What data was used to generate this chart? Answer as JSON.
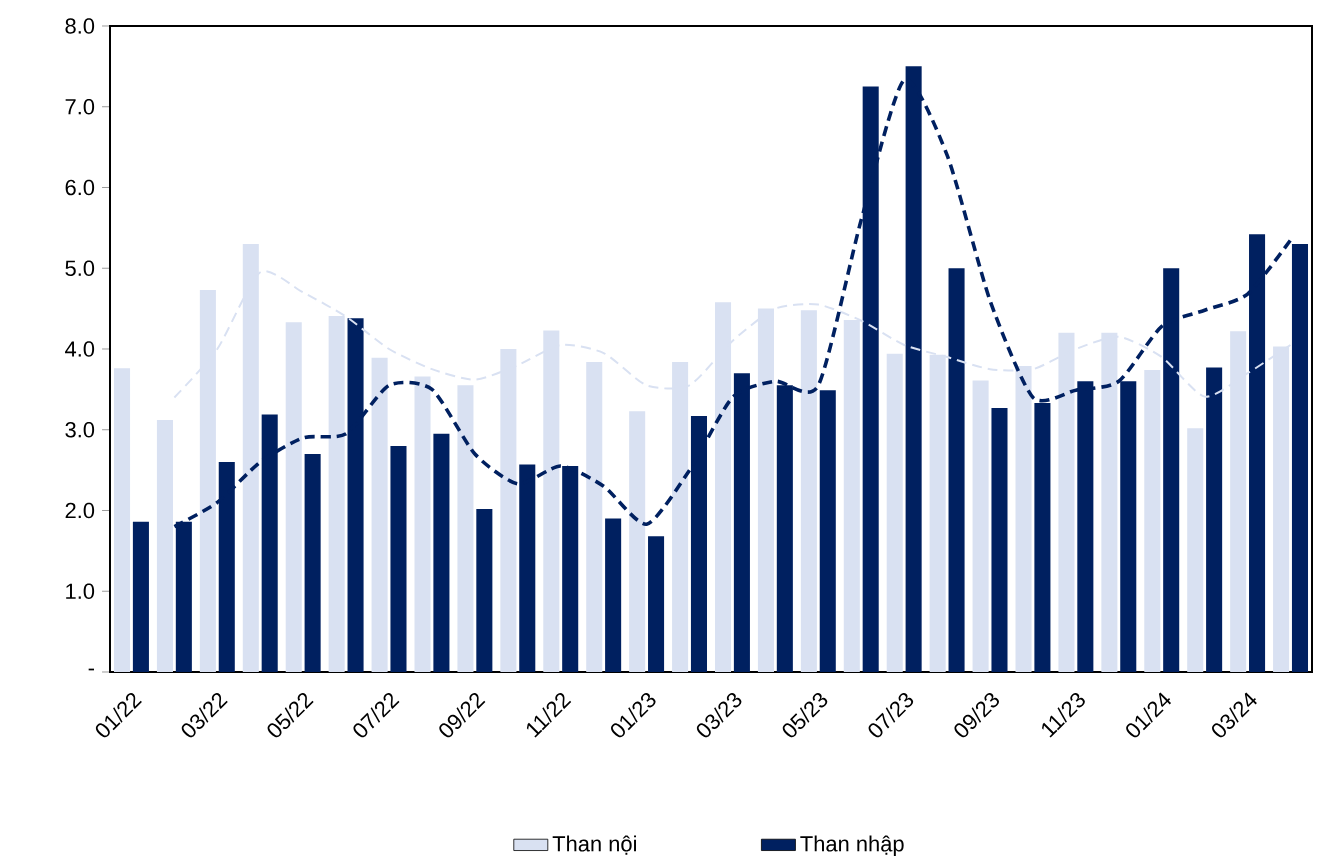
{
  "chart_data": {
    "type": "bar",
    "categories": [
      "01/22",
      null,
      "03/22",
      null,
      "05/22",
      null,
      "07/22",
      null,
      "09/22",
      null,
      "11/22",
      null,
      "01/23",
      null,
      "03/23",
      null,
      "05/23",
      null,
      "07/23",
      null,
      "09/23",
      null,
      "11/23",
      null,
      "01/24",
      null,
      "03/24",
      null
    ],
    "series": [
      {
        "name": "Than nội",
        "color": "#d9e1f2",
        "values": [
          3.76,
          3.12,
          4.73,
          5.3,
          4.33,
          4.41,
          3.89,
          3.66,
          3.55,
          4.0,
          4.23,
          3.84,
          3.23,
          3.84,
          4.58,
          4.5,
          4.48,
          4.36,
          3.94,
          3.93,
          3.61,
          3.79,
          4.2,
          4.2,
          3.74,
          3.02,
          4.22,
          4.03
        ]
      },
      {
        "name": "Than nhập",
        "color": "#002060",
        "values": [
          1.86,
          1.86,
          2.6,
          3.19,
          2.7,
          4.38,
          2.8,
          2.95,
          2.02,
          2.57,
          2.55,
          1.9,
          1.68,
          3.17,
          3.7,
          3.55,
          3.49,
          7.25,
          7.5,
          5.0,
          3.27,
          3.33,
          3.6,
          3.6,
          5.0,
          3.77,
          5.42,
          5.3
        ]
      },
      {
        "type": "line",
        "color": "#d9e1f2",
        "line_style": "dashed",
        "values": [
          null,
          3.4,
          4.0,
          4.95,
          4.7,
          4.4,
          4.0,
          3.75,
          3.62,
          3.8,
          4.05,
          3.95,
          3.55,
          3.55,
          4.1,
          4.5,
          4.55,
          4.35,
          4.05,
          3.9,
          3.75,
          3.75,
          4.0,
          4.15,
          3.9,
          3.41,
          3.7,
          4.05
        ]
      },
      {
        "type": "line",
        "color": "#002060",
        "line_style": "dashed",
        "values": [
          null,
          1.8,
          2.1,
          2.6,
          2.9,
          2.95,
          3.55,
          3.5,
          2.7,
          2.33,
          2.55,
          2.3,
          1.83,
          2.5,
          3.4,
          3.6,
          3.55,
          5.6,
          7.33,
          6.4,
          4.6,
          3.4,
          3.49,
          3.6,
          4.28,
          4.48,
          4.68,
          5.35
        ]
      }
    ],
    "ylim": [
      0,
      8
    ],
    "yticks": [
      {
        "value": 0,
        "label": "-"
      },
      {
        "value": 1,
        "label": "1.0"
      },
      {
        "value": 2,
        "label": "2.0"
      },
      {
        "value": 3,
        "label": "3.0"
      },
      {
        "value": 4,
        "label": "4.0"
      },
      {
        "value": 5,
        "label": "5.0"
      },
      {
        "value": 6,
        "label": "6.0"
      },
      {
        "value": 7,
        "label": "7.0"
      },
      {
        "value": 8,
        "label": "8.0"
      }
    ],
    "legend": "bottom",
    "grid": false
  }
}
